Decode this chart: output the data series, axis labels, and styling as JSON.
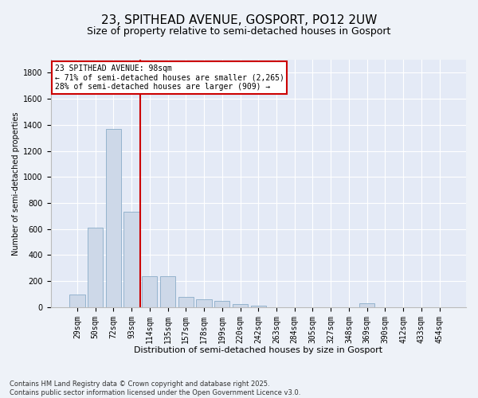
{
  "title": "23, SPITHEAD AVENUE, GOSPORT, PO12 2UW",
  "subtitle": "Size of property relative to semi-detached houses in Gosport",
  "xlabel": "Distribution of semi-detached houses by size in Gosport",
  "ylabel": "Number of semi-detached properties",
  "categories": [
    "29sqm",
    "50sqm",
    "72sqm",
    "93sqm",
    "114sqm",
    "135sqm",
    "157sqm",
    "178sqm",
    "199sqm",
    "220sqm",
    "242sqm",
    "263sqm",
    "284sqm",
    "305sqm",
    "327sqm",
    "348sqm",
    "369sqm",
    "390sqm",
    "412sqm",
    "433sqm",
    "454sqm"
  ],
  "values": [
    100,
    610,
    1370,
    730,
    235,
    235,
    80,
    60,
    45,
    25,
    10,
    0,
    0,
    0,
    0,
    0,
    30,
    0,
    0,
    0,
    0
  ],
  "bar_color": "#cdd8e8",
  "bar_edge_color": "#8aacc8",
  "vline_x_index": 3,
  "vline_color": "#cc0000",
  "annotation_title": "23 SPITHEAD AVENUE: 98sqm",
  "annotation_line1": "← 71% of semi-detached houses are smaller (2,265)",
  "annotation_line2": "28% of semi-detached houses are larger (909) →",
  "annotation_box_color": "#cc0000",
  "ylim": [
    0,
    1900
  ],
  "yticks": [
    0,
    200,
    400,
    600,
    800,
    1000,
    1200,
    1400,
    1600,
    1800
  ],
  "footnote": "Contains HM Land Registry data © Crown copyright and database right 2025.\nContains public sector information licensed under the Open Government Licence v3.0.",
  "background_color": "#eef2f8",
  "plot_background": "#e4eaf6",
  "title_fontsize": 11,
  "subtitle_fontsize": 9,
  "xlabel_fontsize": 8,
  "ylabel_fontsize": 7,
  "tick_fontsize": 7,
  "footnote_fontsize": 6,
  "annot_fontsize": 7
}
